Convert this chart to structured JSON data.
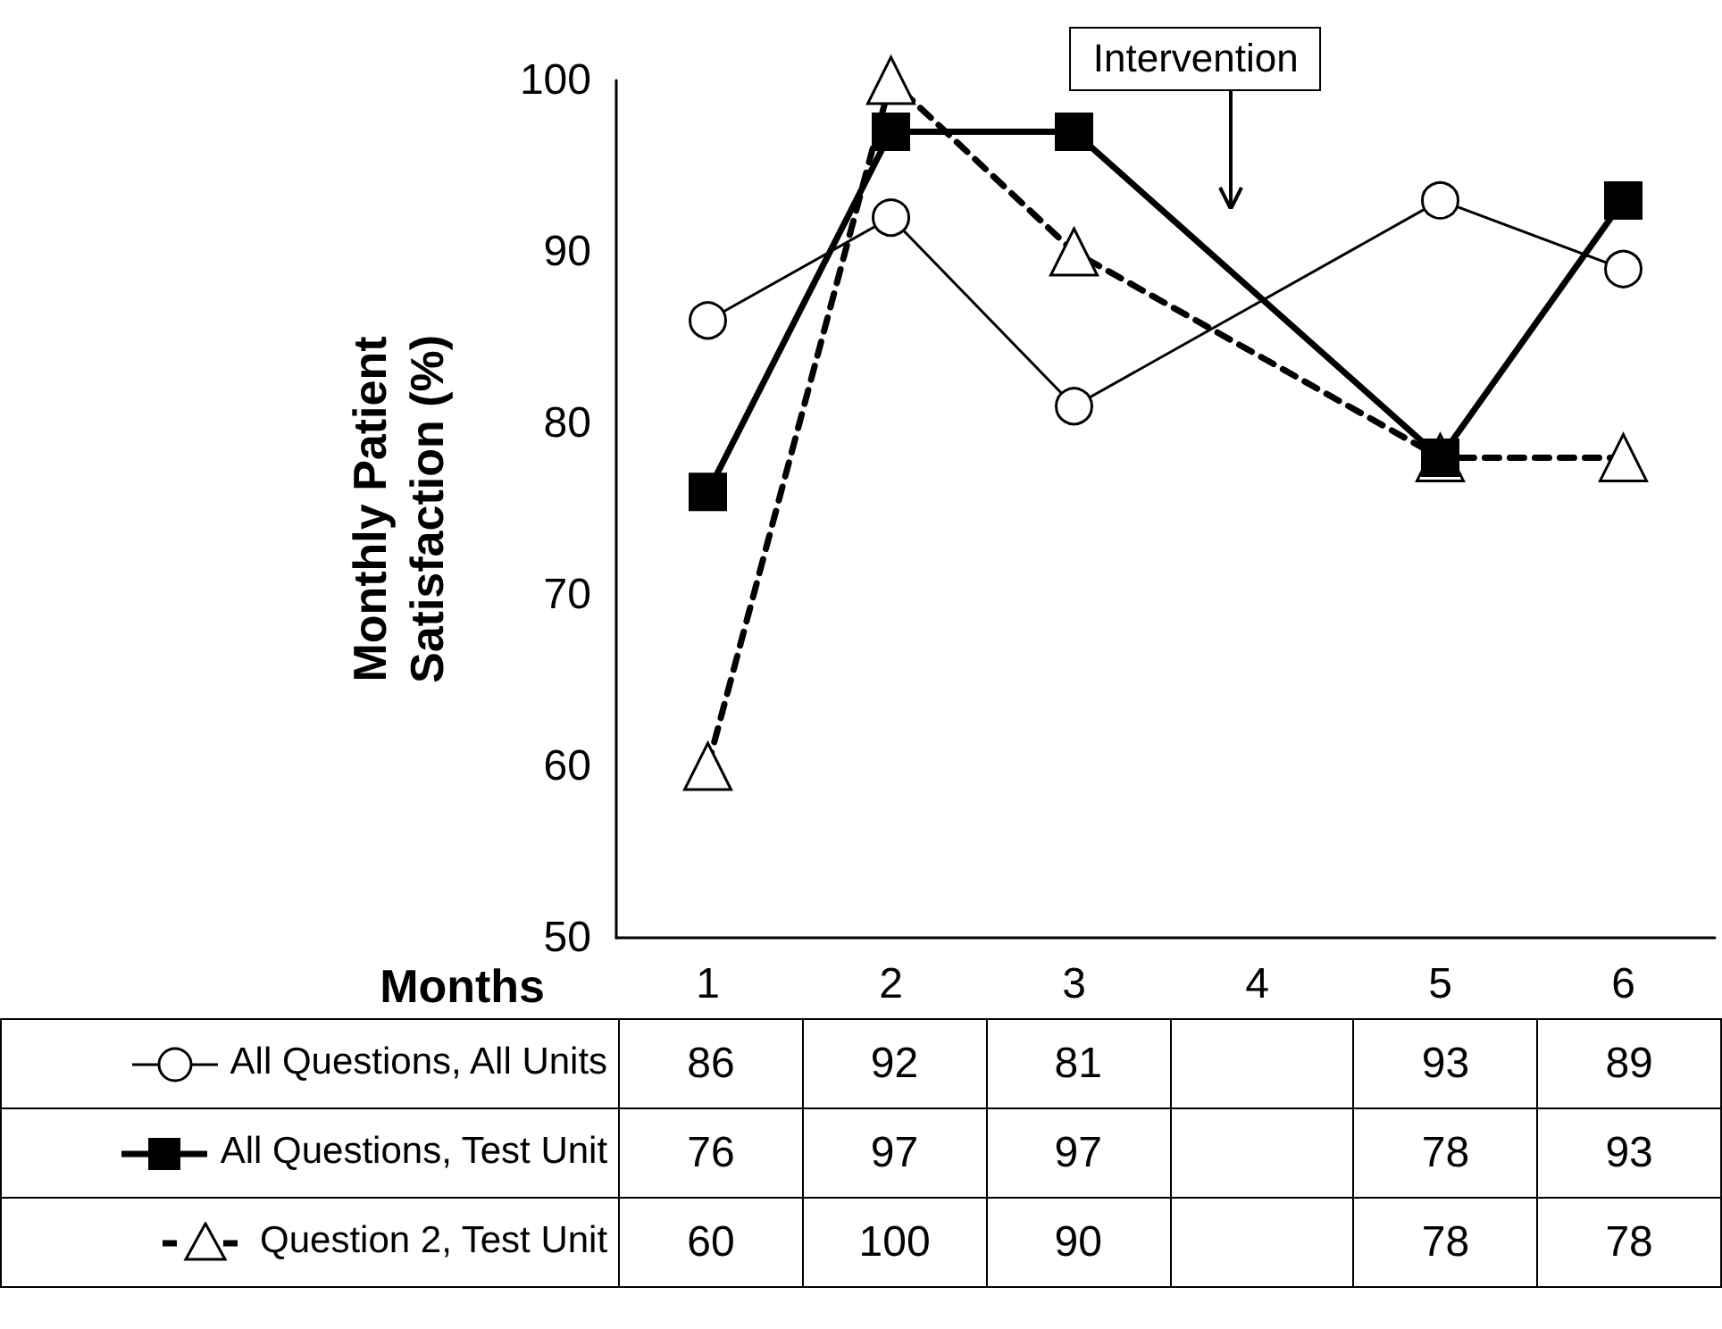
{
  "chart_data": {
    "type": "line",
    "ylabel": "Monthly Patient\nSatisfaction (%)",
    "xlabel": "Months",
    "categories": [
      "1",
      "2",
      "3",
      "4",
      "5",
      "6"
    ],
    "ylim": [
      50,
      100
    ],
    "yticks": [
      50,
      60,
      70,
      80,
      90,
      100
    ],
    "grid": false,
    "legend": "bottom",
    "data_labels": true,
    "annotations": [
      "Intervention"
    ],
    "series": [
      {
        "name": "All Questions, All Units",
        "color": "#000000",
        "marker": "circle",
        "line_style": "solid",
        "values": [
          86,
          92,
          81,
          null,
          93,
          89
        ]
      },
      {
        "name": "All Questions, Test Unit",
        "color": "#000000",
        "marker": "square",
        "line_style": "solid",
        "values": [
          76,
          97,
          97,
          null,
          78,
          93
        ]
      },
      {
        "name": "Question 2, Test Unit",
        "color": "#000000",
        "marker": "triangle",
        "line_style": "dashed",
        "values": [
          60,
          100,
          90,
          null,
          78,
          78
        ]
      }
    ]
  }
}
